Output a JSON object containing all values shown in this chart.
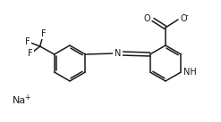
{
  "bg_color": "#ffffff",
  "line_color": "#1a1a1a",
  "line_width": 1.1,
  "font_size": 7.0,
  "figsize": [
    2.47,
    1.37
  ],
  "dpi": 100,
  "na_label": "Na",
  "na_charge": "+",
  "nh_label": "NH",
  "n_label": "N",
  "o_label": "O",
  "o_minus_label": "O",
  "minus_label": "-",
  "f_label": "F"
}
